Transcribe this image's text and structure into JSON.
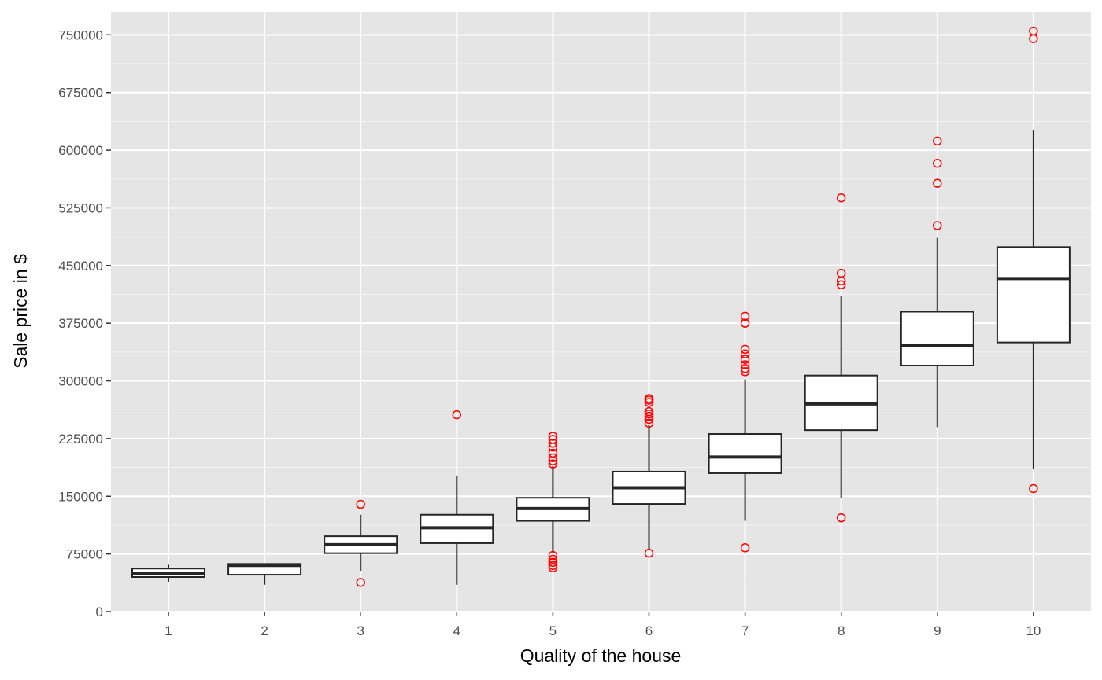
{
  "chart_data": {
    "type": "boxplot",
    "xlabel": "Quality of the house",
    "ylabel": "Sale price in $",
    "ylim": [
      0,
      780000
    ],
    "y_ticks": [
      0,
      75000,
      150000,
      225000,
      300000,
      375000,
      450000,
      525000,
      600000,
      675000,
      750000
    ],
    "y_tick_labels": [
      "0",
      "75000",
      "150000",
      "225000",
      "300000",
      "375000",
      "450000",
      "525000",
      "600000",
      "675000",
      "750000"
    ],
    "grid": true,
    "background": "#e5e5e5",
    "box_fill": "#ffffff",
    "box_stroke": "#262626",
    "outlier_color": "#ff0000",
    "categories": [
      "1",
      "2",
      "3",
      "4",
      "5",
      "6",
      "7",
      "8",
      "9",
      "10"
    ],
    "boxes": [
      {
        "q1": 45000,
        "median": 50000,
        "q3": 56000,
        "whisker_low": 39000,
        "whisker_high": 61000,
        "outliers": []
      },
      {
        "q1": 48000,
        "median": 60000,
        "q3": 62000,
        "whisker_low": 35000,
        "whisker_high": 62000,
        "outliers": []
      },
      {
        "q1": 76000,
        "median": 87000,
        "q3": 98000,
        "whisker_low": 53000,
        "whisker_high": 126000,
        "outliers": [
          139500,
          38000
        ]
      },
      {
        "q1": 89000,
        "median": 109000,
        "q3": 126000,
        "whisker_low": 35000,
        "whisker_high": 177000,
        "outliers": [
          256000
        ]
      },
      {
        "q1": 118000,
        "median": 134000,
        "q3": 148000,
        "whisker_low": 76000,
        "whisker_high": 189000,
        "outliers": [
          228000,
          224000,
          219000,
          214000,
          206000,
          200000,
          196000,
          192000,
          73000,
          68000,
          64000,
          60000,
          57000
        ]
      },
      {
        "q1": 140000,
        "median": 161000,
        "q3": 182000,
        "whisker_low": 80000,
        "whisker_high": 242000,
        "outliers": [
          277000,
          275000,
          272000,
          260000,
          257000,
          254000,
          250000,
          245000,
          76000
        ]
      },
      {
        "q1": 180000,
        "median": 201000,
        "q3": 231000,
        "whisker_low": 118000,
        "whisker_high": 302000,
        "outliers": [
          384000,
          375000,
          341000,
          335000,
          328000,
          321000,
          316000,
          312000,
          83000
        ]
      },
      {
        "q1": 236000,
        "median": 270000,
        "q3": 307000,
        "whisker_low": 148000,
        "whisker_high": 410000,
        "outliers": [
          538000,
          440000,
          430000,
          425000,
          122000
        ]
      },
      {
        "q1": 320000,
        "median": 346000,
        "q3": 390000,
        "whisker_low": 240000,
        "whisker_high": 486000,
        "outliers": [
          612000,
          583000,
          557000,
          502000
        ]
      },
      {
        "q1": 350000,
        "median": 433000,
        "q3": 474000,
        "whisker_low": 185000,
        "whisker_high": 626000,
        "outliers": [
          755000,
          745000,
          160000
        ]
      }
    ]
  }
}
